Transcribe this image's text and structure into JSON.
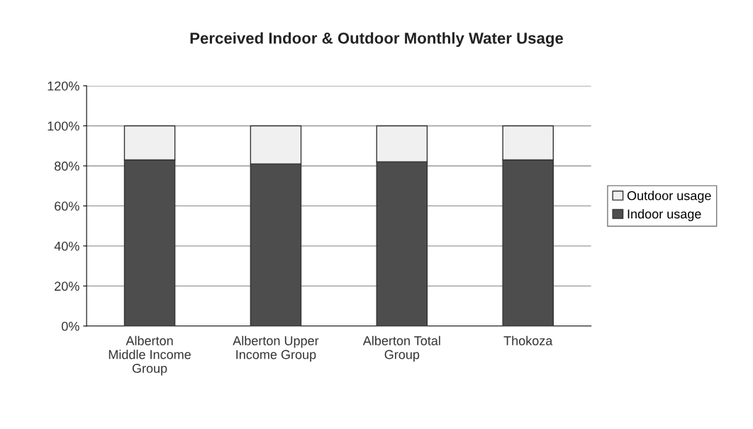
{
  "chart_data": {
    "type": "bar",
    "title": "Perceived Indoor & Outdoor Monthly Water Usage",
    "categories": [
      "Alberton\nMiddle Income\nGroup",
      "Alberton Upper\nIncome Group",
      "Alberton Total\nGroup",
      "Thokoza"
    ],
    "stacked": true,
    "series": [
      {
        "name": "Indoor usage",
        "color": "#4d4d4d",
        "values": [
          83,
          81,
          82,
          83
        ]
      },
      {
        "name": "Outdoor usage",
        "color": "#f0f0f0",
        "values": [
          17,
          19,
          18,
          17
        ]
      }
    ],
    "ylim": [
      0,
      120
    ],
    "yticks": [
      {
        "value": 0,
        "label": "0%"
      },
      {
        "value": 20,
        "label": "20%"
      },
      {
        "value": 40,
        "label": "40%"
      },
      {
        "value": 60,
        "label": "60%"
      },
      {
        "value": 80,
        "label": "80%"
      },
      {
        "value": 100,
        "label": "100%"
      },
      {
        "value": 120,
        "label": "120%"
      }
    ],
    "grid": "y",
    "legend": "right"
  }
}
